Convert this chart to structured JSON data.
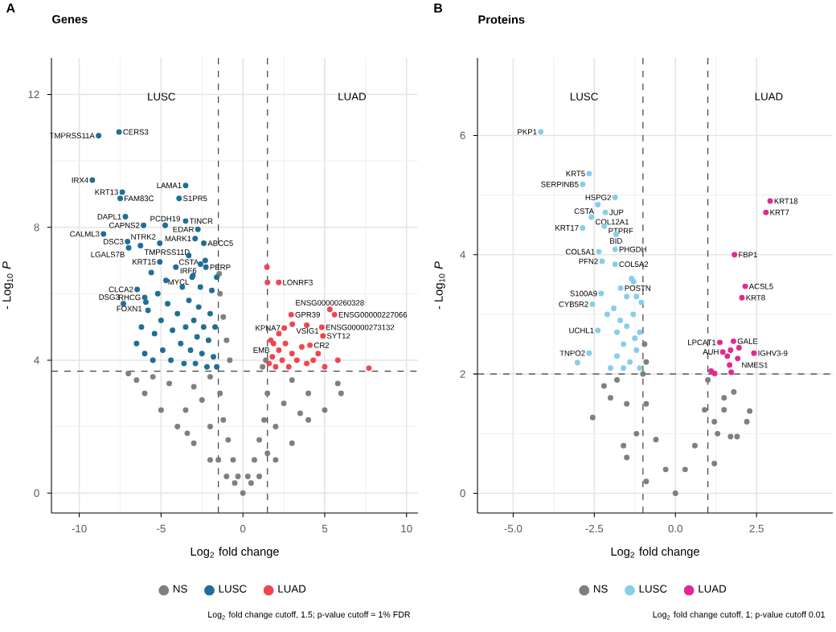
{
  "chart_data": [
    {
      "type": "scatter",
      "title": "Genes",
      "xlabel": "Log$_{2}$ fold change",
      "ylabel": "- Log$_{10}$ *P*",
      "xlim": [
        -11.7,
        10.7
      ],
      "ylim": [
        -0.6,
        13.1
      ],
      "xticks": [
        -10,
        -5,
        0,
        5,
        10
      ],
      "yticks": [
        0,
        4,
        8,
        12
      ],
      "grid": true,
      "legend": "bottom",
      "marker": "circle",
      "series": [
        {
          "name": "NS",
          "color": "#7f7f7f",
          "x": [
            0,
            0.3,
            -0.3,
            -0.6,
            0.7,
            -0.9,
            1.0,
            -1.2,
            1.3,
            -1.4,
            1.5,
            -2,
            2,
            -3,
            3,
            -4,
            4,
            -5,
            5,
            -6,
            6,
            -6.5,
            5.8,
            -7,
            -4.5,
            -3,
            -2,
            3,
            4,
            -2,
            2,
            -1,
            1,
            -1.5,
            1.5,
            -2.5,
            2.5,
            -3.5,
            3.5,
            -5.5,
            -3.4,
            -1.45,
            -1.4,
            -1.2,
            -1.0,
            -0.8,
            1.4,
            1.2,
            -0.5,
            0.5
          ],
          "values": [
            0,
            0.5,
            0.5,
            1,
            1,
            1.6,
            1.6,
            2.2,
            2.2,
            3,
            3,
            1,
            1,
            1.5,
            1.5,
            2,
            2.2,
            2.5,
            2.5,
            3,
            3,
            3.4,
            3.3,
            3.6,
            3.3,
            3.2,
            3.5,
            3.4,
            3,
            2,
            2,
            0.5,
            0.5,
            1,
            1.2,
            2.8,
            2.7,
            2.5,
            2.4,
            3.5,
            1.8,
            6.6,
            6.0,
            5.3,
            4.6,
            4.0,
            4.0,
            3.8,
            0.3,
            0.3
          ]
        },
        {
          "name": "LUSC",
          "color": "#1f6e96",
          "x": [
            -6.5,
            -6.2,
            -6.0,
            -5.8,
            -5.5,
            -5.4,
            -5.2,
            -5.0,
            -4.9,
            -4.7,
            -4.6,
            -4.4,
            -4.3,
            -4.1,
            -4.0,
            -3.8,
            -3.7,
            -3.6,
            -3.5,
            -3.3,
            -3.2,
            -3.1,
            -3.0,
            -2.9,
            -2.8,
            -2.7,
            -2.6,
            -2.5,
            -2.4,
            -2.3,
            -2.2,
            -2.1,
            -2.0,
            -1.9,
            -1.8,
            -1.7,
            -1.6,
            -1.6,
            -7.57,
            -8.82,
            -9.2,
            -7.37,
            -7.5,
            -3.5,
            -3.9,
            -7.18,
            -6.07,
            -4.75,
            -3.5,
            -2.92,
            -2.75,
            -2.39,
            -7.05,
            -8.52,
            -6.26,
            -6.98,
            -5.08,
            -3.31,
            -2.59,
            -2.26,
            -5.08,
            -5.6,
            -3.05,
            -6.46,
            -6.0,
            -5.93,
            -7.3
          ],
          "values": [
            4.5,
            5.0,
            4.2,
            5.5,
            4.0,
            4.8,
            6.0,
            5.2,
            4.3,
            6.4,
            5.7,
            4.0,
            4.9,
            6.8,
            5.4,
            4.5,
            6.2,
            3.9,
            5.0,
            5.8,
            4.3,
            6.5,
            5.2,
            3.9,
            4.7,
            5.6,
            6.2,
            4.2,
            5.0,
            7.0,
            3.8,
            4.6,
            5.4,
            6.1,
            4.1,
            5.0,
            6.5,
            3.8,
            10.87,
            10.76,
            9.42,
            9.06,
            8.87,
            9.26,
            8.87,
            8.32,
            8.06,
            8.06,
            8.19,
            7.66,
            7.94,
            7.52,
            7.57,
            7.8,
            7.45,
            7.38,
            7.52,
            7.15,
            6.89,
            6.8,
            6.96,
            6.64,
            6.55,
            6.13,
            5.89,
            5.75,
            5.7
          ]
        },
        {
          "name": "LUAD",
          "color": "#f0454f",
          "x": [
            1.6,
            1.8,
            2.0,
            2.2,
            2.4,
            2.6,
            2.8,
            3.0,
            3.3,
            3.6,
            3.9,
            4.3,
            4.6,
            5.0,
            5.8,
            1.7,
            2.2,
            1.5,
            1.47,
            2.19,
            5.31,
            5.6,
            2.95,
            3.02,
            2.53,
            4.82,
            3.9,
            4.89,
            1.87,
            4.1,
            7.7
          ],
          "values": [
            3.9,
            4.1,
            3.8,
            4.3,
            4.0,
            4.5,
            3.8,
            4.2,
            4.0,
            4.4,
            3.9,
            4.0,
            4.2,
            3.8,
            4.0,
            4.6,
            4.8,
            6.34,
            6.8,
            6.34,
            5.53,
            5.37,
            5.37,
            5.08,
            4.97,
            4.99,
            5.05,
            4.73,
            4.5,
            4.45,
            3.76
          ]
        }
      ],
      "ref_lines": [
        {
          "axis": "x",
          "value": -1.5,
          "line_style": "dashed"
        },
        {
          "axis": "x",
          "value": 1.5,
          "line_style": "dashed"
        },
        {
          "axis": "y",
          "value": 3.67,
          "line_style": "dashed"
        }
      ],
      "annotations": [
        "A",
        "LUSC",
        "LUAD",
        {
          "text": "CERS3",
          "x": -7.57,
          "y": 10.87
        },
        {
          "text": "TMPRSS11A",
          "x": -8.82,
          "y": 10.76
        },
        {
          "text": "IRX4",
          "x": -9.2,
          "y": 9.42
        },
        {
          "text": "KRT13",
          "x": -7.37,
          "y": 9.06
        },
        {
          "text": "FAM83C",
          "x": -7.5,
          "y": 8.87
        },
        {
          "text": "LAMA1",
          "x": -3.5,
          "y": 9.26
        },
        {
          "text": "S1PR5",
          "x": -3.9,
          "y": 8.87
        },
        {
          "text": "DAPL1",
          "x": -7.18,
          "y": 8.32
        },
        {
          "text": "CAPNS2",
          "x": -6.07,
          "y": 8.06
        },
        {
          "text": "PCDH19",
          "x": -4.75,
          "y": 8.06
        },
        {
          "text": "TINCR",
          "x": -3.5,
          "y": 8.19
        },
        {
          "text": "MARK1",
          "x": -2.92,
          "y": 7.66
        },
        {
          "text": "EDAR",
          "x": -2.75,
          "y": 7.94
        },
        {
          "text": "ABCC5",
          "x": -2.39,
          "y": 7.52
        },
        {
          "text": "DSC3",
          "x": -7.05,
          "y": 7.57
        },
        {
          "text": "CALML3",
          "x": -8.52,
          "y": 7.8
        },
        {
          "text": "TMPRSS11D",
          "x": -6.26,
          "y": 7.45
        },
        {
          "text": "LGALS7B",
          "x": -6.98,
          "y": 7.38
        },
        {
          "text": "NTRK2",
          "x": -5.08,
          "y": 7.52
        },
        {
          "text": "CSTA",
          "x": -3.31,
          "y": 7.15
        },
        {
          "text": "IRF6",
          "x": -2.59,
          "y": 6.89
        },
        {
          "text": "PERP",
          "x": -2.26,
          "y": 6.8
        },
        {
          "text": "KRT15",
          "x": -5.08,
          "y": 6.96
        },
        {
          "text": "MYCL",
          "x": -3.05,
          "y": 6.55
        },
        {
          "text": "CLCA2",
          "x": -6.46,
          "y": 6.13
        },
        {
          "text": "RHCG",
          "x": -6.0,
          "y": 5.89
        },
        {
          "text": "FOXN1",
          "x": -5.93,
          "y": 5.75
        },
        {
          "text": "DSG3",
          "x": -7.3,
          "y": 5.7
        },
        {
          "text": "LONRF3",
          "x": 2.19,
          "y": 6.34
        },
        {
          "text": "ENSG00000260328",
          "x": 5.31,
          "y": 5.53
        },
        {
          "text": "ENSG00000227066",
          "x": 5.6,
          "y": 5.37
        },
        {
          "text": "GPR39",
          "x": 2.95,
          "y": 5.37
        },
        {
          "text": "VSIG1",
          "x": 3.02,
          "y": 5.08
        },
        {
          "text": "KPNA7",
          "x": 2.53,
          "y": 4.97
        },
        {
          "text": "ENSG00000273132",
          "x": 4.82,
          "y": 4.99
        },
        {
          "text": "SYT12",
          "x": 4.89,
          "y": 4.73
        },
        {
          "text": "EMB",
          "x": 1.87,
          "y": 4.5
        },
        {
          "text": "CR2",
          "x": 4.1,
          "y": 4.45
        },
        "Log$_{2}$ fold change cutoff, 1.5; p-value cutoff = 1% FDR"
      ]
    },
    {
      "type": "scatter",
      "title": "Proteins",
      "xlabel": "Log$_{2}$ fold change",
      "ylabel": "- Log$_{10}$ *P*",
      "xlim": [
        -6.1,
        4.85
      ],
      "ylim": [
        -0.33,
        7.3
      ],
      "xticks": [
        {
          "value": -5,
          "label": "-5.0"
        },
        {
          "value": -2.5,
          "label": "-2.5"
        },
        {
          "value": 0,
          "label": "0.0"
        },
        {
          "value": 2.5,
          "label": "2.5"
        }
      ],
      "yticks": [
        0,
        2,
        4,
        6
      ],
      "grid": true,
      "legend": "bottom",
      "marker": "circle",
      "series": [
        {
          "name": "NS",
          "color": "#7f7f7f",
          "x": [
            0,
            -0.3,
            0.3,
            -0.6,
            0.6,
            -0.9,
            0.9,
            -1.0,
            1.0,
            -1.2,
            1.3,
            -1.5,
            1.5,
            -1.8,
            1.8,
            -2.0,
            -2.2,
            2.2,
            -1.5,
            1.2,
            -2.55,
            2.29,
            1.7,
            1.9,
            -1.6,
            -0.9,
            -0.95,
            -0.9,
            1.5,
            1.2
          ],
          "values": [
            0,
            0.4,
            0.4,
            0.9,
            0.8,
            1.5,
            1.4,
            2.0,
            1.9,
            1.0,
            1.0,
            1.5,
            1.4,
            1.9,
            1.7,
            1.6,
            1.8,
            1.2,
            0.6,
            0.5,
            1.27,
            1.38,
            0.95,
            0.95,
            0.8,
            0.2,
            2.5,
            2.2,
            1.6,
            1.2
          ]
        },
        {
          "name": "LUSC",
          "color": "#87ceeb",
          "x": [
            -2.0,
            -1.8,
            -1.6,
            -1.4,
            -1.2,
            -1.1,
            -1.5,
            -1.3,
            -1.7,
            -1.1,
            -1.2,
            -1.5,
            -1.9,
            -1.35,
            -1.05,
            -2.1,
            -1.6,
            -1.25,
            -1.8,
            -4.15,
            -2.66,
            -2.86,
            -1.86,
            -2.39,
            -2.59,
            -2.16,
            -2.86,
            -2.19,
            -1.83,
            -2.36,
            -1.86,
            -2.26,
            -1.86,
            -1.69,
            -2.29,
            -2.56,
            -2.39,
            -2.66,
            -1.29,
            -3.02
          ],
          "values": [
            2.1,
            2.3,
            2.5,
            2.2,
            2.4,
            2.1,
            2.8,
            3.0,
            2.9,
            2.7,
            3.3,
            3.3,
            3.1,
            3.6,
            3.2,
            3.0,
            2.1,
            2.6,
            2.7,
            6.06,
            5.36,
            5.18,
            4.96,
            4.84,
            4.63,
            4.71,
            4.45,
            4.48,
            4.34,
            4.05,
            4.09,
            3.89,
            3.84,
            3.44,
            3.35,
            3.17,
            2.73,
            2.35,
            3.55,
            2.19
          ]
        },
        {
          "name": "LUAD",
          "color": "#e3288f",
          "x": [
            1.1,
            1.6,
            1.7,
            2.92,
            2.79,
            1.82,
            2.15,
            2.05,
            1.37,
            1.79,
            1.46,
            2.42,
            1.92,
            1.96,
            1.67,
            1.21,
            1.72
          ],
          "values": [
            2.05,
            2.3,
            2.4,
            4.9,
            4.71,
            4.0,
            3.47,
            3.28,
            2.53,
            2.55,
            2.37,
            2.35,
            2.26,
            2.44,
            2.15,
            2.01,
            2.03
          ]
        }
      ],
      "ref_lines": [
        {
          "axis": "x",
          "value": -1,
          "line_style": "dashed"
        },
        {
          "axis": "x",
          "value": 1,
          "line_style": "dashed"
        },
        {
          "axis": "y",
          "value": 2,
          "line_style": "dashed"
        }
      ],
      "annotations": [
        "B",
        "LUSC",
        "LUAD",
        {
          "text": "PKP1",
          "x": -4.15,
          "y": 6.06
        },
        {
          "text": "KRT5",
          "x": -2.66,
          "y": 5.36
        },
        {
          "text": "SERPINB5",
          "x": -2.86,
          "y": 5.18
        },
        {
          "text": "HSPG2",
          "x": -1.86,
          "y": 4.96
        },
        {
          "text": "CSTA",
          "x": -2.39,
          "y": 4.84
        },
        {
          "text": "COL12A1",
          "x": -2.59,
          "y": 4.63
        },
        {
          "text": "JUP",
          "x": -2.16,
          "y": 4.71
        },
        {
          "text": "KRT17",
          "x": -2.86,
          "y": 4.45
        },
        {
          "text": "PTPRF",
          "x": -2.19,
          "y": 4.48
        },
        {
          "text": "BID",
          "x": -1.83,
          "y": 4.34
        },
        {
          "text": "COL5A1",
          "x": -2.36,
          "y": 4.05
        },
        {
          "text": "PHGDH",
          "x": -1.86,
          "y": 4.09
        },
        {
          "text": "PFN2",
          "x": -2.26,
          "y": 3.89
        },
        {
          "text": "COL5A2",
          "x": -1.86,
          "y": 3.84
        },
        {
          "text": "POSTN",
          "x": -1.69,
          "y": 3.44
        },
        {
          "text": "S100A9",
          "x": -2.29,
          "y": 3.35
        },
        {
          "text": "CYB5R2",
          "x": -2.56,
          "y": 3.17
        },
        {
          "text": "UCHL1",
          "x": -2.39,
          "y": 2.73
        },
        {
          "text": "TNPO2",
          "x": -2.66,
          "y": 2.35
        },
        {
          "text": "KRT18",
          "x": 2.92,
          "y": 4.9
        },
        {
          "text": "KRT7",
          "x": 2.79,
          "y": 4.71
        },
        {
          "text": "FBP1",
          "x": 1.82,
          "y": 4.0
        },
        {
          "text": "ACSL5",
          "x": 2.15,
          "y": 3.47
        },
        {
          "text": "KRT8",
          "x": 2.05,
          "y": 3.28
        },
        {
          "text": "LPCAT1",
          "x": 1.37,
          "y": 2.53
        },
        {
          "text": "GALE",
          "x": 1.79,
          "y": 2.55
        },
        {
          "text": "AUH",
          "x": 1.46,
          "y": 2.37
        },
        {
          "text": "IGHV3-9",
          "x": 2.42,
          "y": 2.35
        },
        {
          "text": "NMES1",
          "x": 1.92,
          "y": 2.26
        },
        "Log$_{2}$ fold change cutoff, 1; p-value cutoff 0.01"
      ]
    }
  ]
}
